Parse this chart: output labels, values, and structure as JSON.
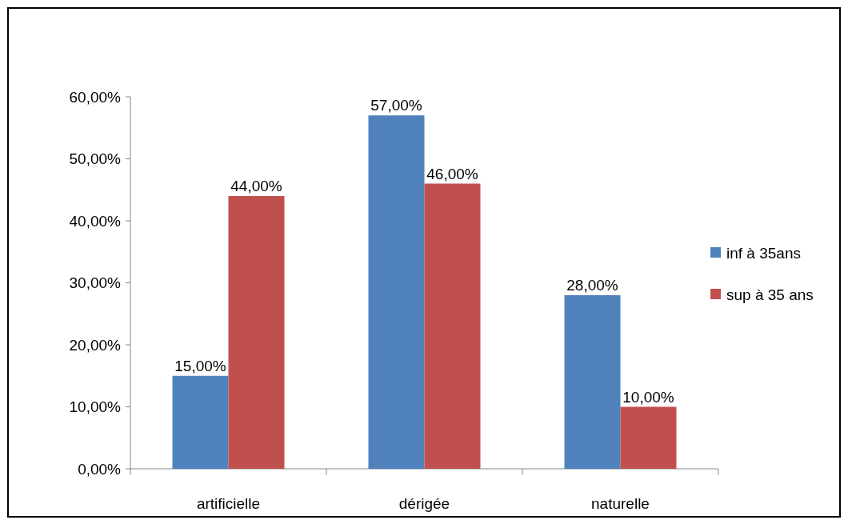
{
  "chart_data": {
    "type": "bar",
    "categories": [
      "artificielle",
      "dérigée",
      "naturelle"
    ],
    "series": [
      {
        "name": "inf à 35ans",
        "color": "#4f81bd",
        "values": [
          15,
          57,
          28
        ],
        "value_labels": [
          "15,00%",
          "57,00%",
          "28,00%"
        ]
      },
      {
        "name": "sup à 35 ans",
        "color": "#c0504d",
        "values": [
          44,
          46,
          10
        ],
        "value_labels": [
          "44,00%",
          "46,00%",
          "10,00%"
        ]
      }
    ],
    "ylim": [
      0,
      60
    ],
    "yticks": [
      {
        "value": 0,
        "label": "0,00%"
      },
      {
        "value": 10,
        "label": "10,00%"
      },
      {
        "value": 20,
        "label": "20,00%"
      },
      {
        "value": 30,
        "label": "30,00%"
      },
      {
        "value": 40,
        "label": "40,00%"
      },
      {
        "value": 50,
        "label": "50,00%"
      },
      {
        "value": 60,
        "label": "60,00%"
      }
    ],
    "grid": false,
    "legend": "right"
  }
}
